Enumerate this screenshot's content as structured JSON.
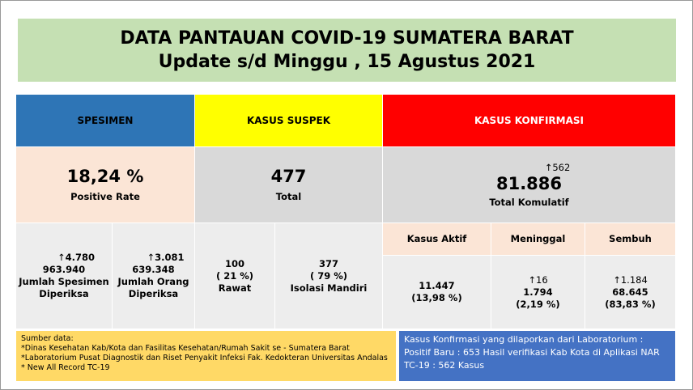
{
  "header": {
    "title": "DATA PANTAUAN COVID-19 SUMATERA BARAT",
    "subtitle": "Update s/d Minggu , 15 Agustus 2021"
  },
  "spesimen": {
    "label": "SPESIMEN",
    "rate": "18,24 %",
    "rate_label": "Positive Rate",
    "items": [
      {
        "increase": "4.780",
        "total": "963.940",
        "label": "Jumlah Spesimen Diperiksa"
      },
      {
        "increase": "3.081",
        "total": "639.348",
        "label": "Jumlah Orang Diperiksa"
      }
    ]
  },
  "suspek": {
    "label": "KASUS SUSPEK",
    "total": "477",
    "total_label": "Total",
    "items": [
      {
        "total": "100",
        "percent": "( 21 %)",
        "label": "Rawat"
      },
      {
        "total": "377",
        "percent": "( 79 %)",
        "label": "Isolasi Mandiri"
      }
    ]
  },
  "konfirmasi": {
    "label": "KASUS KONFIRMASI",
    "increase": "562",
    "total": "81.886",
    "total_label": "Total Komulatif",
    "items": [
      {
        "label": "Kasus Aktif",
        "increase": null,
        "total": "11.447",
        "percent": "(13,98 %)"
      },
      {
        "label": "Meninggal",
        "increase": "16",
        "total": "1.794",
        "percent": "(2,19 %)"
      },
      {
        "label": "Sembuh",
        "increase": "1.184",
        "total": "68.645",
        "percent": "(83,83 %)"
      }
    ]
  },
  "sources": {
    "title": "Sumber data:",
    "lines": [
      "*Dinas Kesehatan Kab/Kota  dan Fasilitas Kesehatan/Rumah Sakit se - Sumatera Barat",
      "*Laboratorium  Pusat Diagnostik dan Riset  Penyakit Infeksi Fak. Kedokteran Universitas Andalas",
      "* New All Record TC-19"
    ]
  },
  "note": "Kasus Konfirmasi yang dilaporkan dari Laboratorium : Positif Baru : 653 Hasil verifikasi Kab Kota di Aplikasi NAR TC-19 : 562 Kasus"
}
